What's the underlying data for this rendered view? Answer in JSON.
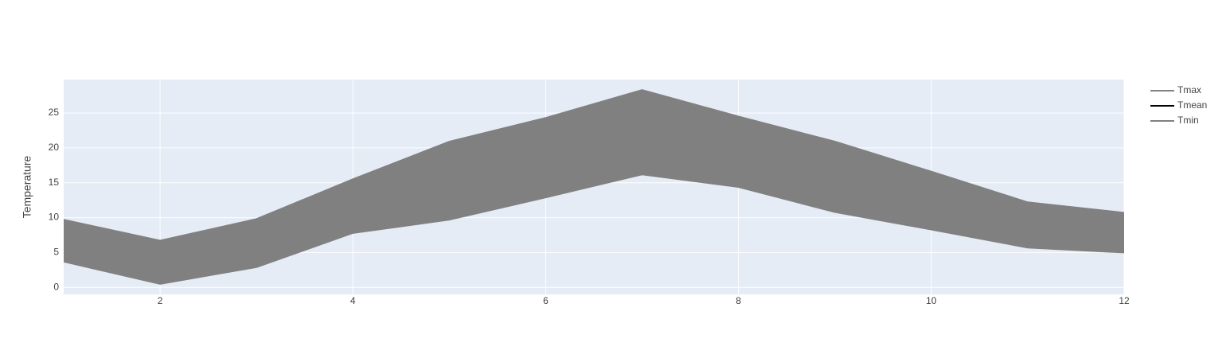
{
  "chart_data": {
    "type": "line",
    "y_label": "Temperature",
    "x": [
      1,
      2,
      3,
      4,
      5,
      6,
      7,
      8,
      9,
      10,
      11,
      12
    ],
    "series": [
      {
        "name": "Tmax",
        "color": "#808080",
        "values": [
          9.7,
          6.7,
          9.8,
          15.5,
          20.9,
          24.3,
          28.3,
          24.5,
          20.9,
          16.6,
          12.2,
          10.7
        ]
      },
      {
        "name": "Tmean",
        "color": "#000000",
        "values": [
          null,
          null,
          null,
          null,
          null,
          null,
          null,
          null,
          null,
          null,
          null,
          null
        ]
      },
      {
        "name": "Tmin",
        "color": "#808080",
        "values": [
          3.7,
          0.5,
          2.9,
          7.8,
          9.7,
          12.9,
          16.2,
          14.4,
          10.8,
          8.3,
          5.7,
          5.0
        ]
      }
    ],
    "fill_color": "#808080",
    "xlim": [
      1,
      12
    ],
    "xticks": [
      2,
      4,
      6,
      8,
      10,
      12
    ],
    "ylim": [
      -1,
      29.8
    ],
    "yticks": [
      0,
      5,
      10,
      15,
      20,
      25
    ],
    "grid": true,
    "legend": "right"
  }
}
